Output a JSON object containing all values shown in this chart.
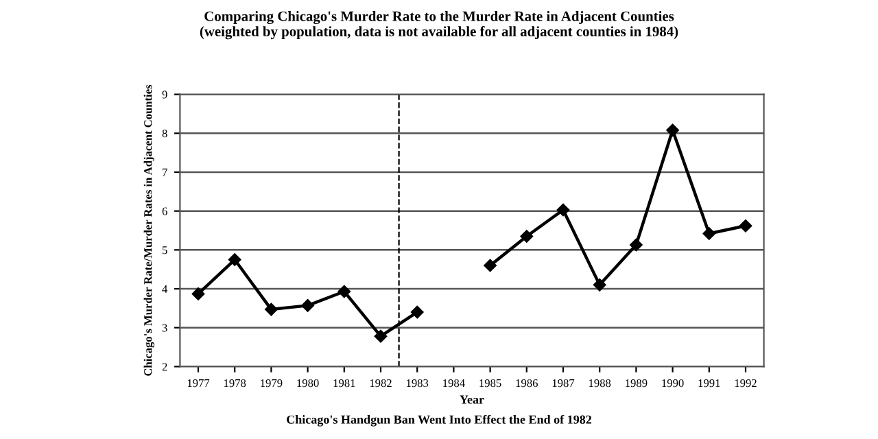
{
  "chart_data": {
    "type": "line",
    "title": "Comparing Chicago's Murder Rate to the Murder Rate in Adjacent Counties\n(weighted by population, data is not available for all adjacent counties in 1984)",
    "xlabel": "Year",
    "ylabel": "Chicago's Murder Rate/Murder Rates in Adjacent Counties",
    "annotations": [
      "Chicago's Handgun Ban Went Into Effect the End of 1982"
    ],
    "x": [
      1977,
      1978,
      1979,
      1980,
      1981,
      1982,
      1983,
      1984,
      1985,
      1986,
      1987,
      1988,
      1989,
      1990,
      1991,
      1992
    ],
    "series": [
      {
        "color": "#000000",
        "values": [
          3.87,
          4.75,
          3.47,
          3.57,
          3.93,
          2.78,
          3.4,
          null,
          4.6,
          5.35,
          6.03,
          4.1,
          5.13,
          8.08,
          5.42,
          5.62
        ]
      }
    ],
    "xlim": [
      1976.5,
      1992.5
    ],
    "xticks": [
      1977,
      1978,
      1979,
      1980,
      1981,
      1982,
      1983,
      1984,
      1985,
      1986,
      1987,
      1988,
      1989,
      1990,
      1991,
      1992
    ],
    "ylim": [
      2,
      9
    ],
    "yticks": [
      2,
      3,
      4,
      5,
      6,
      7,
      8,
      9
    ],
    "ref_lines": [
      {
        "axis": "x",
        "value": 1982.5,
        "color": "#000000",
        "line_style": "dashed"
      }
    ],
    "grid": "y",
    "marker": "diamond",
    "line_style": "solid"
  }
}
